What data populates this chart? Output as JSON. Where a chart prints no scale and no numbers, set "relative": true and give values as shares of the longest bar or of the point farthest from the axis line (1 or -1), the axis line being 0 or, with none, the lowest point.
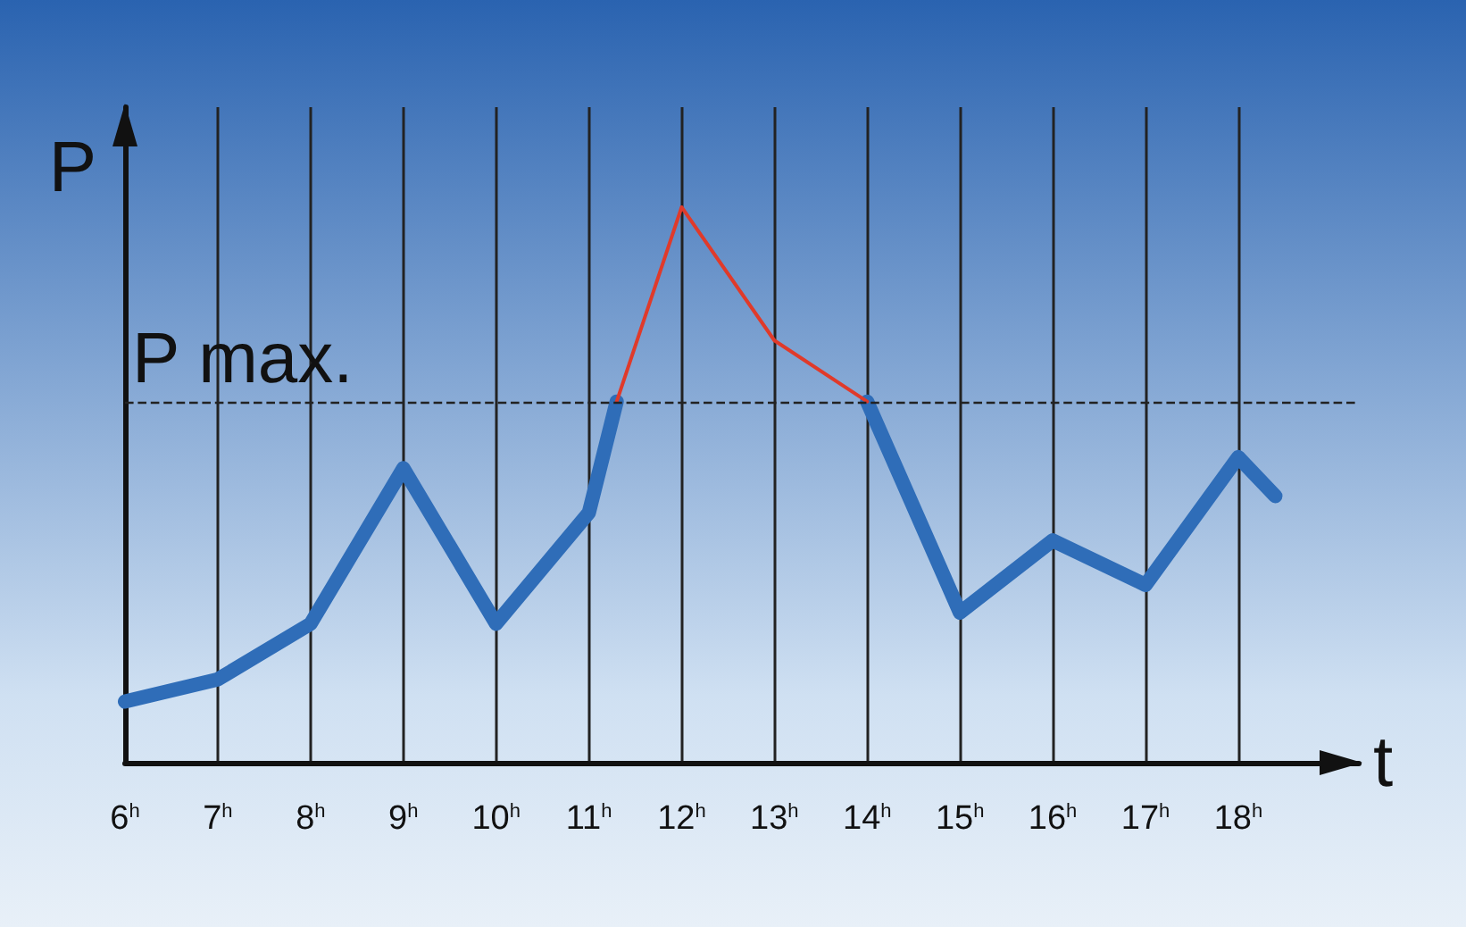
{
  "chart_data": {
    "type": "line",
    "relative": true,
    "xlabel": "t",
    "ylabel": "P",
    "x": [
      6,
      7,
      8,
      9,
      10,
      11,
      11.3,
      12,
      13,
      14,
      15,
      16,
      17,
      18,
      18.4
    ],
    "xlim": [
      6,
      19.3
    ],
    "xticks": [
      {
        "value": 6,
        "label": "6$^{h}$"
      },
      {
        "value": 7,
        "label": "7$^{h}$"
      },
      {
        "value": 8,
        "label": "8$^{h}$"
      },
      {
        "value": 9,
        "label": "9$^{h}$"
      },
      {
        "value": 10,
        "label": "10$^{h}$"
      },
      {
        "value": 11,
        "label": "11$^{h}$"
      },
      {
        "value": 12,
        "label": "12$^{h}$"
      },
      {
        "value": 13,
        "label": "13$^{h}$"
      },
      {
        "value": 14,
        "label": "14$^{h}$"
      },
      {
        "value": 15,
        "label": "15$^{h}$"
      },
      {
        "value": 16,
        "label": "16$^{h}$"
      },
      {
        "value": 17,
        "label": "17$^{h}$"
      },
      {
        "value": 18,
        "label": "18$^{h}$"
      }
    ],
    "series": [
      {
        "color": "#2f6db8",
        "values": [
          0.11,
          0.15,
          0.25,
          0.53,
          0.25,
          0.45,
          0.65,
          null,
          null,
          0.65,
          0.27,
          0.4,
          0.32,
          0.55,
          0.48
        ]
      },
      {
        "color": "#e03a2a",
        "values": [
          null,
          null,
          null,
          null,
          null,
          null,
          0.65,
          1,
          0.76,
          0.65,
          null,
          null,
          null,
          null,
          null
        ]
      }
    ],
    "ref_lines": [
      {
        "axis": "y",
        "value": 0.65,
        "label": "P max.",
        "line_style": "dashed",
        "color": "#222222"
      }
    ],
    "grid": "x",
    "marker": "none"
  }
}
